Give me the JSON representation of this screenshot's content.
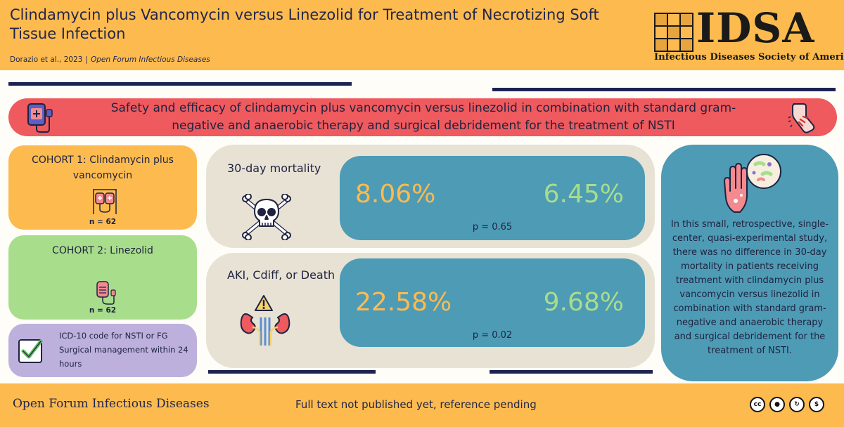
{
  "header": {
    "title": "Clindamycin plus Vancomycin versus Linezolid for Treatment of Necrotizing Soft Tissue Infection",
    "authors": "Dorazio et al., 2023",
    "separator": "|",
    "journal": "Open Forum Infectious Diseases",
    "logo_text": "IDSA",
    "logo_subtitle": "Infectious Diseases Society of America"
  },
  "banner": {
    "text": "Safety and efficacy of clindamycin plus vancomycin versus linezolid in combination with standard gram-negative and anaerobic therapy and surgical debridement for the treatment of NSTI",
    "left_icon": "iv-bag-icon",
    "right_icon": "leg-injury-icon"
  },
  "cohorts": [
    {
      "title": "COHORT 1: Clindamycin plus vancomycin",
      "n": "n = 62",
      "icon": "iv-bags-icon"
    },
    {
      "title": "COHORT 2: Linezolid",
      "n": "n = 62",
      "icon": "iv-bag-icon"
    }
  ],
  "criteria": {
    "icon": "checkbox-icon",
    "items": [
      "ICD-10 code for NSTI or FG",
      "Surgical management within 24 hours"
    ]
  },
  "outcomes": [
    {
      "label": "30-day mortality",
      "icon": "skull-crossbones-icon",
      "cohort1": "8.06%",
      "cohort2": "6.45%",
      "p": "p = 0.65"
    },
    {
      "label": "AKI, Cdiff, or Death",
      "icon": "kidney-warning-icon",
      "cohort1": "22.58%",
      "cohort2": "9.68%",
      "p": "p = 0.02"
    }
  ],
  "conclusion": {
    "icon": "hand-bacteria-icon",
    "text": "In this small, retrospective, single-center, quasi-experimental study, there was no difference in 30-day mortality in patients receiving treatment with clindamycin plus vancomycin versus linezolid in combination with standard gram-negative and anaerobic therapy and surgical debridement for the treatment of NSTI."
  },
  "footer": {
    "journal": "Open Forum Infectious Diseases",
    "note": "Full text not published yet, reference pending",
    "license_icons": [
      "cc-icon",
      "by-icon",
      "sa-icon",
      "nc-icon"
    ]
  },
  "colors": {
    "gold": "#FDBB4F",
    "red": "#EE5A5E",
    "green": "#A8DD8C",
    "purple": "#BDB0DD",
    "teal": "#4E9BB5",
    "beige": "#E8E2D5",
    "navy": "#1C2350"
  }
}
